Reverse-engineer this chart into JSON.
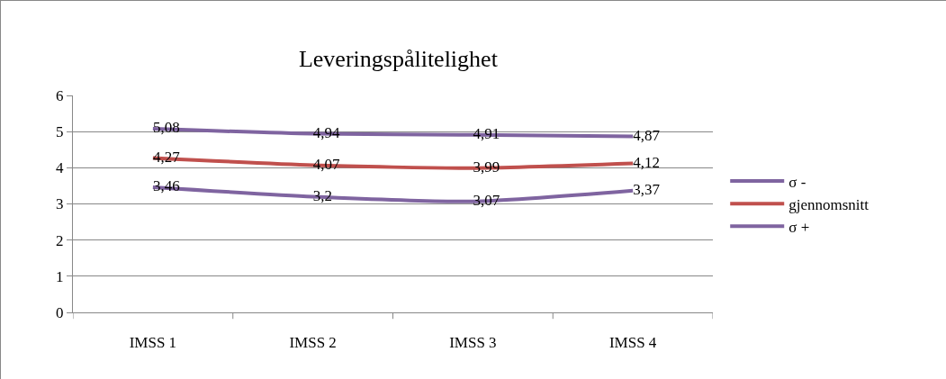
{
  "chart_data": {
    "type": "line",
    "title": "Leveringspålitelighet",
    "categories": [
      "IMSS 1",
      "IMSS 2",
      "IMSS 3",
      "IMSS 4"
    ],
    "series": [
      {
        "name": "σ -",
        "color": "#7f64a0",
        "values": [
          3.46,
          3.2,
          3.07,
          3.37
        ],
        "value_labels": [
          "3,46",
          "3,2",
          "3,07",
          "3,37"
        ]
      },
      {
        "name": "gjennomsnitt",
        "color": "#c0504d",
        "values": [
          4.27,
          4.07,
          3.99,
          4.12
        ],
        "value_labels": [
          "4,27",
          "4,07",
          "3,99",
          "4,12"
        ]
      },
      {
        "name": "σ +",
        "color": "#7f64a0",
        "values": [
          5.08,
          4.94,
          4.91,
          4.87
        ],
        "value_labels": [
          "5,08",
          "4,94",
          "4,91",
          "4,87"
        ]
      }
    ],
    "ylim": [
      0,
      6
    ],
    "yticks": [
      0,
      1,
      2,
      3,
      4,
      5,
      6
    ],
    "grid": "y",
    "legend": "right",
    "marker": "none",
    "line_style": "solid"
  }
}
